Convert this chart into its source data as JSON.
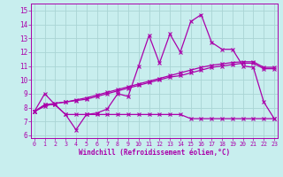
{
  "xlabel": "Windchill (Refroidissement éolien,°C)",
  "x_ticks": [
    0,
    1,
    2,
    3,
    4,
    5,
    6,
    7,
    8,
    9,
    10,
    11,
    12,
    13,
    14,
    15,
    16,
    17,
    18,
    19,
    20,
    21,
    22,
    23
  ],
  "y_ticks": [
    6,
    7,
    8,
    9,
    10,
    11,
    12,
    13,
    14,
    15
  ],
  "ylim": [
    5.8,
    15.5
  ],
  "xlim": [
    -0.3,
    23.3
  ],
  "bg_color": "#c8eeee",
  "grid_color": "#aad4d4",
  "line_color": "#aa00aa",
  "line1_y": [
    7.7,
    9.0,
    8.2,
    7.5,
    6.4,
    7.5,
    7.6,
    7.9,
    9.0,
    8.8,
    11.0,
    13.2,
    11.2,
    13.3,
    12.0,
    14.2,
    14.7,
    12.7,
    12.2,
    12.2,
    11.0,
    10.9,
    8.4,
    7.2
  ],
  "line2_y": [
    7.7,
    8.2,
    8.2,
    7.5,
    7.5,
    7.5,
    7.5,
    7.5,
    7.5,
    7.5,
    7.5,
    7.5,
    7.5,
    7.5,
    7.5,
    7.2,
    7.2,
    7.2,
    7.2,
    7.2,
    7.2,
    7.2,
    7.2,
    7.2
  ],
  "line3_y": [
    7.7,
    8.1,
    8.3,
    8.4,
    8.5,
    8.6,
    8.8,
    9.0,
    9.2,
    9.4,
    9.6,
    9.8,
    10.0,
    10.2,
    10.3,
    10.5,
    10.7,
    10.9,
    11.0,
    11.1,
    11.2,
    11.2,
    10.8,
    10.8
  ],
  "line4_y": [
    7.7,
    8.2,
    8.3,
    8.4,
    8.55,
    8.7,
    8.9,
    9.1,
    9.3,
    9.5,
    9.7,
    9.9,
    10.1,
    10.3,
    10.5,
    10.7,
    10.9,
    11.05,
    11.15,
    11.25,
    11.3,
    11.3,
    10.9,
    10.9
  ]
}
